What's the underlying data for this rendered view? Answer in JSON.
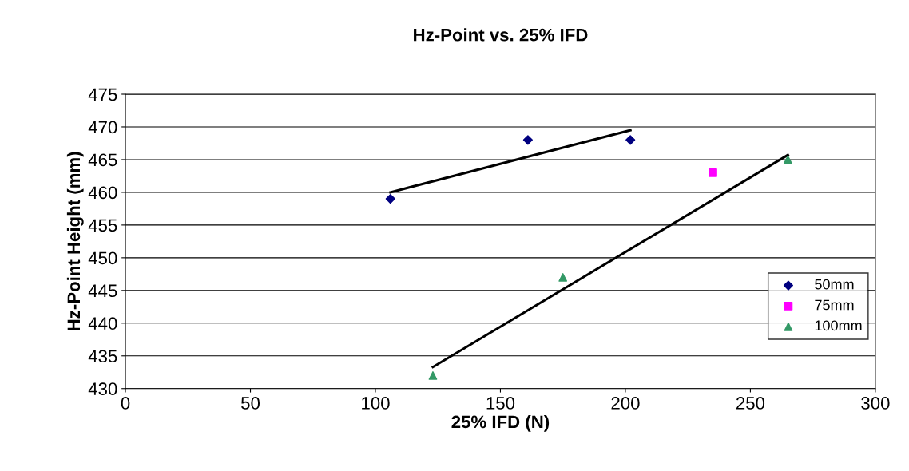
{
  "chart_data": {
    "type": "scatter",
    "title": "Hz-Point vs. 25% IFD",
    "xlabel": "25% IFD (N)",
    "ylabel": "Hz-Point Height (mm)",
    "xlim": [
      0,
      300
    ],
    "xticks": [
      0,
      50,
      100,
      150,
      200,
      250,
      300
    ],
    "ylim": [
      430,
      475
    ],
    "yticks": [
      430,
      435,
      440,
      445,
      450,
      455,
      460,
      465,
      470,
      475
    ],
    "grid": "y",
    "legend": "right",
    "series": [
      {
        "name": "50mm",
        "color": "#000080",
        "marker": "diamond",
        "x": [
          106,
          161,
          202
        ],
        "values": [
          459,
          468,
          468
        ]
      },
      {
        "name": "75mm",
        "color": "#ff00ff",
        "marker": "square",
        "x": [
          235
        ],
        "values": [
          463
        ]
      },
      {
        "name": "100mm",
        "color": "#339966",
        "marker": "triangle",
        "x": [
          123,
          175,
          265
        ],
        "values": [
          432,
          447,
          465
        ]
      },
      {
        "type": "line",
        "color": "#000000",
        "marker": "none",
        "x": [
          106,
          202
        ],
        "values": [
          460,
          469.5
        ]
      },
      {
        "type": "line",
        "color": "#000000",
        "marker": "none",
        "x": [
          123,
          265
        ],
        "values": [
          433.3,
          465.7
        ]
      }
    ]
  }
}
